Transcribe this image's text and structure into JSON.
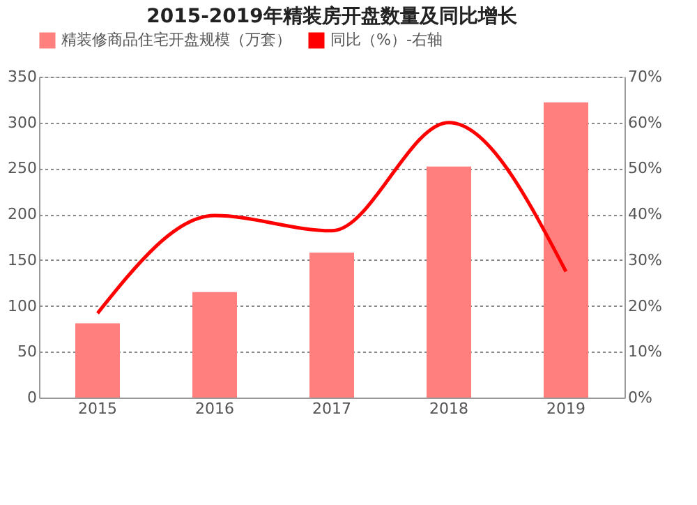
{
  "chart_data": {
    "type": "bar",
    "title": "2015-2019年精装房开盘数量及同比增长",
    "categories": [
      "2015",
      "2016",
      "2017",
      "2018",
      "2019"
    ],
    "series": [
      {
        "name": "精装修商品住宅开盘规模（万套）",
        "color": "#ff7f7f",
        "values": [
          81,
          115,
          158,
          252,
          322
        ]
      },
      {
        "name": "同比（%）-右轴",
        "type": "line",
        "axis": "y2",
        "color": "#ff0000",
        "values": [
          18.4,
          39.7,
          36.4,
          60,
          27.5
        ]
      }
    ],
    "ylim": [
      0,
      350
    ],
    "yticks": [
      0,
      50,
      100,
      150,
      200,
      250,
      300,
      350
    ],
    "y2lim": [
      0,
      70
    ],
    "y2ticks": [
      {
        "value": 0,
        "label": "0%"
      },
      {
        "value": 10,
        "label": "10%"
      },
      {
        "value": 20,
        "label": "20%"
      },
      {
        "value": 30,
        "label": "30%"
      },
      {
        "value": 40,
        "label": "40%"
      },
      {
        "value": 50,
        "label": "50%"
      },
      {
        "value": 60,
        "label": "60%"
      },
      {
        "value": 70,
        "label": "70%"
      }
    ],
    "grid": "y",
    "legend": "top",
    "marker": "none"
  }
}
